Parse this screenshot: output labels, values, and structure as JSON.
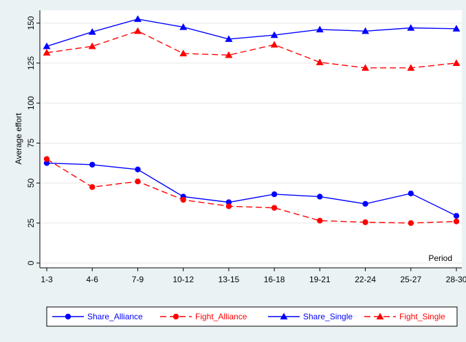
{
  "chart_data": {
    "type": "line",
    "title": "",
    "xlabel": "Period",
    "ylabel": "Average effort",
    "categories": [
      "1-3",
      "4-6",
      "7-9",
      "10-12",
      "13-15",
      "16-18",
      "19-21",
      "22-24",
      "25-27",
      "28-30"
    ],
    "yticks": [
      0,
      25,
      50,
      75,
      100,
      125,
      150
    ],
    "ylim": [
      -3,
      158
    ],
    "grid": true,
    "legend_position": "bottom",
    "series": [
      {
        "name": "Share_Alliance",
        "color": "#0000ff",
        "marker": "circle",
        "dash": "solid",
        "values": [
          62.5,
          61.5,
          58.5,
          41.5,
          38,
          43,
          41.5,
          37,
          43.5,
          29.5
        ]
      },
      {
        "name": "Fight_Alliance",
        "color": "#ff0000",
        "marker": "circle",
        "dash": "dashed",
        "values": [
          65,
          47.5,
          51,
          39.5,
          35.5,
          34.5,
          26.5,
          25.5,
          25,
          26
        ]
      },
      {
        "name": "Share_Single",
        "color": "#0000ff",
        "marker": "triangle",
        "dash": "solid",
        "values": [
          135.5,
          144.5,
          152.5,
          147.5,
          140,
          142.5,
          146,
          145,
          147,
          146.5
        ]
      },
      {
        "name": "Fight_Single",
        "color": "#ff0000",
        "marker": "triangle",
        "dash": "dashed",
        "values": [
          131.5,
          135.5,
          145,
          131,
          130,
          136.5,
          125.5,
          122,
          122,
          125
        ]
      }
    ]
  }
}
